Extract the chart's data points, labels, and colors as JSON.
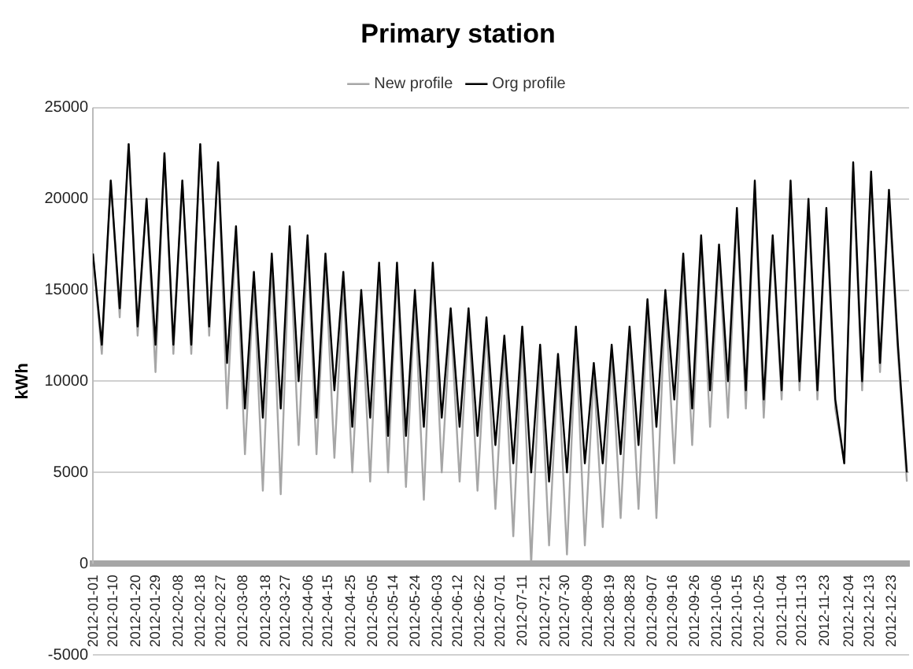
{
  "chart_data": {
    "type": "line",
    "title": "Primary station",
    "ylabel": "kWh",
    "x": [
      "2012-01-01",
      "2012-01-05",
      "2012-01-09",
      "2012-01-13",
      "2012-01-17",
      "2012-01-21",
      "2012-01-25",
      "2012-01-29",
      "2012-02-02",
      "2012-02-06",
      "2012-02-10",
      "2012-02-14",
      "2012-02-18",
      "2012-02-22",
      "2012-02-26",
      "2012-03-01",
      "2012-03-05",
      "2012-03-09",
      "2012-03-13",
      "2012-03-17",
      "2012-03-21",
      "2012-03-25",
      "2012-03-29",
      "2012-04-02",
      "2012-04-06",
      "2012-04-10",
      "2012-04-14",
      "2012-04-18",
      "2012-04-22",
      "2012-04-26",
      "2012-04-30",
      "2012-05-04",
      "2012-05-08",
      "2012-05-12",
      "2012-05-16",
      "2012-05-20",
      "2012-05-24",
      "2012-05-28",
      "2012-06-01",
      "2012-06-05",
      "2012-06-09",
      "2012-06-13",
      "2012-06-17",
      "2012-06-21",
      "2012-06-25",
      "2012-06-29",
      "2012-07-03",
      "2012-07-07",
      "2012-07-11",
      "2012-07-15",
      "2012-07-19",
      "2012-07-23",
      "2012-07-27",
      "2012-07-31",
      "2012-08-04",
      "2012-08-08",
      "2012-08-12",
      "2012-08-16",
      "2012-08-20",
      "2012-08-24",
      "2012-08-28",
      "2012-09-01",
      "2012-09-05",
      "2012-09-09",
      "2012-09-13",
      "2012-09-17",
      "2012-09-21",
      "2012-09-25",
      "2012-09-29",
      "2012-10-03",
      "2012-10-07",
      "2012-10-11",
      "2012-10-15",
      "2012-10-19",
      "2012-10-23",
      "2012-10-27",
      "2012-10-31",
      "2012-11-04",
      "2012-11-08",
      "2012-11-12",
      "2012-11-16",
      "2012-11-20",
      "2012-11-24",
      "2012-11-28",
      "2012-12-02",
      "2012-12-06",
      "2012-12-10",
      "2012-12-14",
      "2012-12-18",
      "2012-12-22",
      "2012-12-26",
      "2012-12-30"
    ],
    "series": [
      {
        "name": "New profile",
        "color": "#a6a6a6",
        "values": [
          17000,
          11500,
          21000,
          13500,
          23000,
          12500,
          20000,
          10500,
          22500,
          11500,
          21000,
          11500,
          23000,
          12500,
          22000,
          8500,
          18000,
          6000,
          15500,
          4000,
          16500,
          3800,
          18000,
          6500,
          17500,
          6000,
          16500,
          5800,
          15500,
          5000,
          14500,
          4500,
          16000,
          5000,
          16000,
          4200,
          14500,
          3500,
          16000,
          5000,
          13500,
          4500,
          13500,
          4000,
          13000,
          3000,
          12000,
          1500,
          12500,
          0,
          11500,
          1000,
          11000,
          500,
          12500,
          1000,
          10500,
          2000,
          11500,
          2500,
          12500,
          3000,
          14000,
          2500,
          14500,
          5500,
          16500,
          6500,
          17500,
          7500,
          17000,
          8000,
          19000,
          8500,
          20500,
          8000,
          17500,
          9000,
          20500,
          9500,
          19500,
          9000,
          19000,
          8500,
          5500,
          21500,
          9500,
          21000,
          10500,
          20000,
          11500,
          4500
        ]
      },
      {
        "name": "Org profile",
        "color": "#000000",
        "values": [
          17000,
          12000,
          21000,
          14000,
          23000,
          13000,
          20000,
          12000,
          22500,
          12000,
          21000,
          12000,
          23000,
          13000,
          22000,
          11000,
          18500,
          8500,
          16000,
          8000,
          17000,
          8500,
          18500,
          10000,
          18000,
          8000,
          17000,
          9500,
          16000,
          7500,
          15000,
          8000,
          16500,
          7000,
          16500,
          7000,
          15000,
          7500,
          16500,
          8000,
          14000,
          7500,
          14000,
          7000,
          13500,
          6500,
          12500,
          5500,
          13000,
          5000,
          12000,
          4500,
          11500,
          5000,
          13000,
          5500,
          11000,
          5500,
          12000,
          6000,
          13000,
          6500,
          14500,
          7500,
          15000,
          9000,
          17000,
          8500,
          18000,
          9500,
          17500,
          10000,
          19500,
          9500,
          21000,
          9000,
          18000,
          9500,
          21000,
          10000,
          20000,
          9500,
          19500,
          9000,
          5500,
          22000,
          10000,
          21500,
          11000,
          20500,
          12000,
          5000
        ]
      }
    ],
    "xlim": [
      "2012-01-01",
      "2012-12-31"
    ],
    "xticks": [
      "2012-01-01",
      "2012-01-10",
      "2012-01-20",
      "2012-01-29",
      "2012-02-08",
      "2012-02-18",
      "2012-02-27",
      "2012-03-08",
      "2012-03-18",
      "2012-03-27",
      "2012-04-06",
      "2012-04-15",
      "2012-04-25",
      "2012-05-05",
      "2012-05-14",
      "2012-05-24",
      "2012-06-03",
      "2012-06-12",
      "2012-06-22",
      "2012-07-01",
      "2012-07-11",
      "2012-07-21",
      "2012-07-30",
      "2012-08-09",
      "2012-08-19",
      "2012-08-28",
      "2012-09-07",
      "2012-09-16",
      "2012-09-26",
      "2012-10-06",
      "2012-10-15",
      "2012-10-25",
      "2012-11-04",
      "2012-11-13",
      "2012-11-23",
      "2012-12-04",
      "2012-12-13",
      "2012-12-23"
    ],
    "ylim": [
      -5000,
      25000
    ],
    "yticks": [
      -5000,
      0,
      5000,
      10000,
      15000,
      20000,
      25000
    ],
    "grid": "y",
    "legend": "top",
    "marker": "none",
    "line_style": "solid"
  }
}
